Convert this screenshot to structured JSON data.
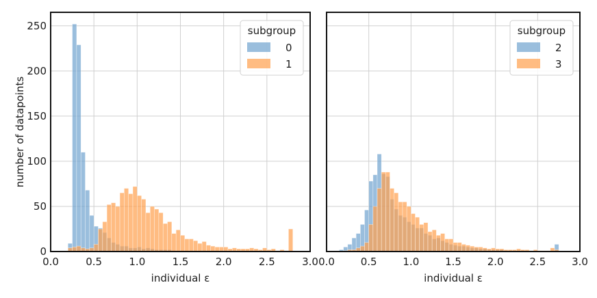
{
  "chart_data": [
    {
      "type": "bar",
      "chart_kind": "histogram",
      "xlabel": "individual ε",
      "ylabel": "number of datapoints",
      "xlim": [
        0.0,
        3.0
      ],
      "ylim": [
        0,
        265
      ],
      "xticks": [
        "0.0",
        "0.5",
        "1.0",
        "1.5",
        "2.0",
        "2.5",
        "3.0"
      ],
      "yticks": [
        "0",
        "50",
        "100",
        "150",
        "200",
        "250"
      ],
      "grid": true,
      "legend": {
        "title": "subgroup",
        "position": "top-right"
      },
      "bin_width": 0.05,
      "series": [
        {
          "name": "0",
          "color": "#6fa3cf",
          "bins": [
            [
              0.2,
              9
            ],
            [
              0.25,
              252
            ],
            [
              0.3,
              229
            ],
            [
              0.35,
              110
            ],
            [
              0.4,
              68
            ],
            [
              0.45,
              40
            ],
            [
              0.5,
              28
            ],
            [
              0.55,
              26
            ],
            [
              0.6,
              21
            ],
            [
              0.65,
              15
            ],
            [
              0.7,
              10
            ],
            [
              0.75,
              8
            ],
            [
              0.8,
              6
            ],
            [
              0.85,
              6
            ],
            [
              0.9,
              4
            ],
            [
              0.95,
              4
            ],
            [
              1.0,
              5
            ],
            [
              1.05,
              3
            ],
            [
              1.1,
              4
            ],
            [
              1.15,
              3
            ],
            [
              1.2,
              2
            ],
            [
              1.25,
              2
            ],
            [
              1.3,
              2
            ],
            [
              1.35,
              2
            ],
            [
              1.4,
              1
            ],
            [
              1.45,
              1
            ]
          ]
        },
        {
          "name": "1",
          "color": "#ffa04d",
          "bins": [
            [
              0.2,
              4
            ],
            [
              0.25,
              5
            ],
            [
              0.3,
              6
            ],
            [
              0.35,
              4
            ],
            [
              0.4,
              3
            ],
            [
              0.45,
              4
            ],
            [
              0.5,
              8
            ],
            [
              0.55,
              25
            ],
            [
              0.6,
              33
            ],
            [
              0.65,
              52
            ],
            [
              0.7,
              54
            ],
            [
              0.75,
              50
            ],
            [
              0.8,
              65
            ],
            [
              0.85,
              70
            ],
            [
              0.9,
              64
            ],
            [
              0.95,
              72
            ],
            [
              1.0,
              62
            ],
            [
              1.05,
              58
            ],
            [
              1.1,
              43
            ],
            [
              1.15,
              50
            ],
            [
              1.2,
              47
            ],
            [
              1.25,
              43
            ],
            [
              1.3,
              31
            ],
            [
              1.35,
              33
            ],
            [
              1.4,
              20
            ],
            [
              1.45,
              24
            ],
            [
              1.5,
              18
            ],
            [
              1.55,
              14
            ],
            [
              1.6,
              14
            ],
            [
              1.65,
              12
            ],
            [
              1.7,
              9
            ],
            [
              1.75,
              11
            ],
            [
              1.8,
              7
            ],
            [
              1.85,
              6
            ],
            [
              1.9,
              5
            ],
            [
              1.95,
              5
            ],
            [
              2.0,
              5
            ],
            [
              2.05,
              3
            ],
            [
              2.1,
              4
            ],
            [
              2.15,
              3
            ],
            [
              2.2,
              3
            ],
            [
              2.25,
              3
            ],
            [
              2.3,
              4
            ],
            [
              2.35,
              3
            ],
            [
              2.4,
              2
            ],
            [
              2.45,
              4
            ],
            [
              2.5,
              2
            ],
            [
              2.55,
              3
            ],
            [
              2.6,
              1
            ],
            [
              2.65,
              2
            ],
            [
              2.7,
              1
            ],
            [
              2.75,
              25
            ]
          ]
        }
      ]
    },
    {
      "type": "bar",
      "chart_kind": "histogram",
      "xlabel": "individual ε",
      "ylabel": "",
      "xlim": [
        0.0,
        3.0
      ],
      "ylim": [
        0,
        265
      ],
      "xticks": [
        "0.0",
        "0.5",
        "1.0",
        "1.5",
        "2.0",
        "2.5",
        "3.0"
      ],
      "yticks": [],
      "grid": true,
      "legend": {
        "title": "subgroup",
        "position": "top-right"
      },
      "bin_width": 0.05,
      "series": [
        {
          "name": "2",
          "color": "#6fa3cf",
          "bins": [
            [
              0.15,
              2
            ],
            [
              0.2,
              5
            ],
            [
              0.25,
              8
            ],
            [
              0.3,
              15
            ],
            [
              0.35,
              20
            ],
            [
              0.4,
              30
            ],
            [
              0.45,
              46
            ],
            [
              0.5,
              78
            ],
            [
              0.55,
              85
            ],
            [
              0.6,
              108
            ],
            [
              0.65,
              86
            ],
            [
              0.7,
              83
            ],
            [
              0.75,
              58
            ],
            [
              0.8,
              47
            ],
            [
              0.85,
              40
            ],
            [
              0.9,
              38
            ],
            [
              0.95,
              33
            ],
            [
              1.0,
              30
            ],
            [
              1.05,
              26
            ],
            [
              1.1,
              26
            ],
            [
              1.15,
              20
            ],
            [
              1.2,
              18
            ],
            [
              1.25,
              14
            ],
            [
              1.3,
              15
            ],
            [
              1.35,
              12
            ],
            [
              1.4,
              10
            ],
            [
              1.45,
              8
            ],
            [
              1.5,
              7
            ],
            [
              1.55,
              6
            ],
            [
              1.6,
              6
            ],
            [
              1.65,
              5
            ],
            [
              1.7,
              4
            ],
            [
              1.75,
              4
            ],
            [
              1.8,
              3
            ],
            [
              1.85,
              3
            ],
            [
              1.9,
              2
            ],
            [
              1.95,
              2
            ],
            [
              2.0,
              2
            ],
            [
              2.05,
              2
            ],
            [
              2.1,
              1
            ],
            [
              2.15,
              1
            ],
            [
              2.2,
              1
            ],
            [
              2.25,
              1
            ],
            [
              2.3,
              1
            ],
            [
              2.4,
              1
            ],
            [
              2.5,
              1
            ],
            [
              2.6,
              1
            ],
            [
              2.7,
              8
            ]
          ]
        },
        {
          "name": "3",
          "color": "#ffa04d",
          "bins": [
            [
              0.2,
              1
            ],
            [
              0.25,
              2
            ],
            [
              0.3,
              2
            ],
            [
              0.35,
              4
            ],
            [
              0.4,
              6
            ],
            [
              0.45,
              10
            ],
            [
              0.5,
              30
            ],
            [
              0.55,
              50
            ],
            [
              0.6,
              70
            ],
            [
              0.65,
              88
            ],
            [
              0.7,
              88
            ],
            [
              0.75,
              70
            ],
            [
              0.8,
              65
            ],
            [
              0.85,
              55
            ],
            [
              0.9,
              55
            ],
            [
              0.95,
              50
            ],
            [
              1.0,
              42
            ],
            [
              1.05,
              38
            ],
            [
              1.1,
              30
            ],
            [
              1.15,
              32
            ],
            [
              1.2,
              22
            ],
            [
              1.25,
              24
            ],
            [
              1.3,
              18
            ],
            [
              1.35,
              20
            ],
            [
              1.4,
              14
            ],
            [
              1.45,
              14
            ],
            [
              1.5,
              10
            ],
            [
              1.55,
              10
            ],
            [
              1.6,
              8
            ],
            [
              1.65,
              7
            ],
            [
              1.7,
              6
            ],
            [
              1.75,
              5
            ],
            [
              1.8,
              5
            ],
            [
              1.85,
              4
            ],
            [
              1.9,
              3
            ],
            [
              1.95,
              4
            ],
            [
              2.0,
              3
            ],
            [
              2.05,
              3
            ],
            [
              2.1,
              2
            ],
            [
              2.15,
              2
            ],
            [
              2.2,
              2
            ],
            [
              2.25,
              3
            ],
            [
              2.3,
              2
            ],
            [
              2.35,
              2
            ],
            [
              2.4,
              1
            ],
            [
              2.45,
              2
            ],
            [
              2.5,
              1
            ],
            [
              2.55,
              1
            ],
            [
              2.6,
              1
            ],
            [
              2.65,
              4
            ],
            [
              2.7,
              2
            ]
          ]
        }
      ]
    }
  ]
}
